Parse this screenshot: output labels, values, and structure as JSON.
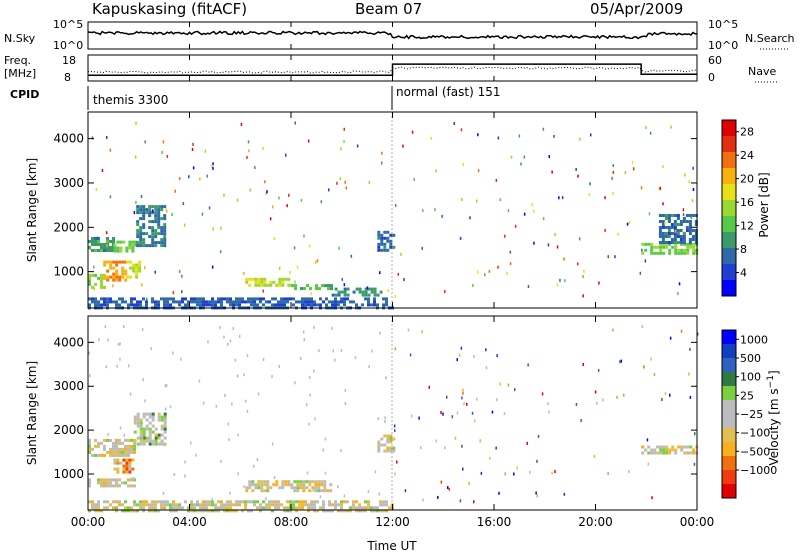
{
  "header": {
    "station": "Kapuskasing (fitACF)",
    "beam": "Beam 07",
    "date": "05/Apr/2009"
  },
  "small_panels": {
    "nsky_label": "N.Sky",
    "nsky_ticks": [
      "10^5",
      "10^0"
    ],
    "nsearch_label": "N.Search",
    "nsearch_ticks": [
      "10^5",
      "10^0"
    ],
    "freq_label": "Freq.",
    "freq_unit": "[MHz]",
    "freq_ticks": [
      "18",
      "8"
    ],
    "nave_label": "Nave",
    "nave_ticks": [
      "60",
      "0"
    ],
    "cpid_label": "CPID",
    "cpid_segments": [
      {
        "name": "themis 3300",
        "start_h": 0,
        "end_h": 12
      },
      {
        "name": "normal (fast) 151",
        "start_h": 12,
        "end_h": 24
      }
    ]
  },
  "colors": {
    "power_scale": [
      "#0000ff",
      "#1f3fd0",
      "#2f6aa8",
      "#3c9a6a",
      "#58c848",
      "#9ad832",
      "#e8e014",
      "#f8b010",
      "#f07010",
      "#e03010",
      "#e00000"
    ],
    "velocity_scale": [
      "#e00000",
      "#f03a10",
      "#f07010",
      "#f8b020",
      "#e0c050",
      "#bcbcbc",
      "#bcbcbc",
      "#7ad040",
      "#2f7a40",
      "#3060c0",
      "#1040c0",
      "#0000ff"
    ],
    "nsky_line": "#000000",
    "background": "#ffffff"
  },
  "chart_data": [
    {
      "type": "heatmap",
      "panel": "power",
      "xlabel": "",
      "ylabel": "Slant Range [km]",
      "x_range_hours": [
        0,
        24
      ],
      "ylim": [
        180,
        4600
      ],
      "yticks": [
        "1000",
        "2000",
        "3000",
        "4000"
      ],
      "colorbar_label": "Power [dB]",
      "colorbar_ticks": [
        "4",
        "8",
        "12",
        "16",
        "20",
        "24",
        "28"
      ],
      "colorbar_range": [
        0,
        30
      ],
      "regions": [
        {
          "t0": 0.0,
          "t1": 1.0,
          "r0": 1470,
          "r1": 1780,
          "level": 9
        },
        {
          "t0": 1.0,
          "t1": 1.9,
          "r0": 1450,
          "r1": 1700,
          "level": 13
        },
        {
          "t0": 1.9,
          "t1": 3.0,
          "r0": 1600,
          "r1": 2500,
          "level": 7
        },
        {
          "t0": 0.0,
          "t1": 0.6,
          "r0": 650,
          "r1": 950,
          "level": 14
        },
        {
          "t0": 0.6,
          "t1": 1.5,
          "r0": 800,
          "r1": 1250,
          "level": 22
        },
        {
          "t0": 1.5,
          "t1": 2.0,
          "r0": 900,
          "r1": 1250,
          "level": 17
        },
        {
          "t0": 6.2,
          "t1": 8.0,
          "r0": 720,
          "r1": 860,
          "level": 16
        },
        {
          "t0": 8.0,
          "t1": 9.6,
          "r0": 600,
          "r1": 720,
          "level": 10
        },
        {
          "t0": 9.6,
          "t1": 11.6,
          "r0": 500,
          "r1": 640,
          "level": 8
        },
        {
          "t0": 11.4,
          "t1": 12.0,
          "r0": 1500,
          "r1": 1920,
          "level": 6
        },
        {
          "t0": 0.0,
          "t1": 12.0,
          "r0": 180,
          "r1": 420,
          "level": 5
        },
        {
          "t0": 21.8,
          "t1": 24.0,
          "r0": 1420,
          "r1": 1650,
          "level": 13
        },
        {
          "t0": 22.5,
          "t1": 24.0,
          "r0": 1650,
          "r1": 2300,
          "level": 6
        }
      ]
    },
    {
      "type": "heatmap",
      "panel": "velocity",
      "xlabel": "Time UT",
      "ylabel": "Slant Range [km]",
      "x_range_hours": [
        0,
        24
      ],
      "xticks": [
        "00:00",
        "04:00",
        "08:00",
        "12:00",
        "16:00",
        "20:00",
        "00:00"
      ],
      "ylim": [
        180,
        4600
      ],
      "yticks": [
        "1000",
        "2000",
        "3000",
        "4000"
      ],
      "colorbar_label": "Velocity [m s^-1]",
      "colorbar_ticks": [
        "-1000",
        "-500",
        "-100",
        "-25",
        "25",
        "100",
        "500",
        "1000"
      ],
      "regions": [
        {
          "t0": 0.0,
          "t1": 1.8,
          "r0": 1450,
          "r1": 1800,
          "level": 5
        },
        {
          "t0": 1.0,
          "t1": 1.8,
          "r0": 1050,
          "r1": 1350,
          "level": 3
        },
        {
          "t0": 0.0,
          "t1": 1.8,
          "r0": 700,
          "r1": 900,
          "level": 5
        },
        {
          "t0": 1.8,
          "t1": 3.0,
          "r0": 1650,
          "r1": 2400,
          "level": 6
        },
        {
          "t0": 6.2,
          "t1": 9.6,
          "r0": 600,
          "r1": 860,
          "level": 5
        },
        {
          "t0": 0.0,
          "t1": 12.0,
          "r0": 180,
          "r1": 400,
          "level": 5
        },
        {
          "t0": 11.4,
          "t1": 12.0,
          "r0": 1500,
          "r1": 1900,
          "level": 5
        },
        {
          "t0": 21.8,
          "t1": 24.0,
          "r0": 1450,
          "r1": 1650,
          "level": 5
        }
      ]
    }
  ]
}
